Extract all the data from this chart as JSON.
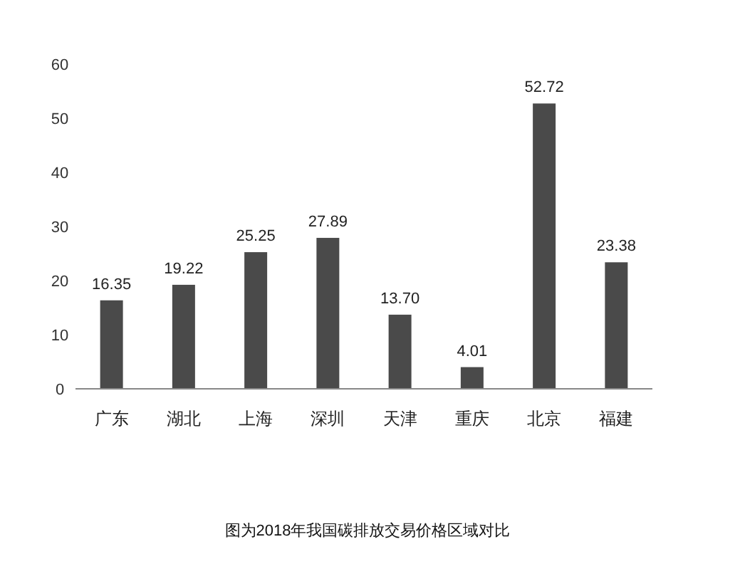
{
  "chart_data": {
    "type": "bar",
    "categories": [
      "广东",
      "湖北",
      "上海",
      "深圳",
      "天津",
      "重庆",
      "北京",
      "福建"
    ],
    "values": [
      16.35,
      19.22,
      25.25,
      27.89,
      13.7,
      4.01,
      52.72,
      23.38
    ],
    "value_labels": [
      "16.35",
      "19.22",
      "25.25",
      "27.89",
      "13.70",
      "4.01",
      "52.72",
      "23.38"
    ],
    "color": "#4a4a4a",
    "ylim": [
      0,
      60
    ],
    "yticks": [
      0,
      10,
      20,
      30,
      40,
      50,
      60
    ],
    "annotations": [
      "图为2018年我国碳排放交易价格区域对比"
    ]
  }
}
